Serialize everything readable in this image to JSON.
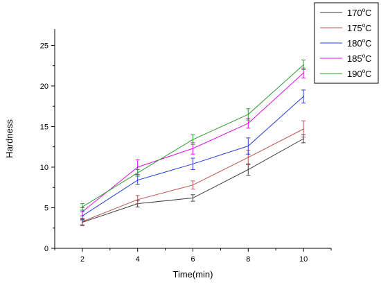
{
  "chart_data": {
    "type": "line",
    "title": "",
    "xlabel": "Time(min)",
    "ylabel": "Hardness",
    "x": [
      2,
      4,
      6,
      8,
      10
    ],
    "xticks": [
      "2",
      "4",
      "6",
      "8",
      "10"
    ],
    "xlim": [
      1,
      11
    ],
    "yticks": [
      "0",
      "5",
      "10",
      "15",
      "20",
      "25"
    ],
    "ylim": [
      0,
      27
    ],
    "legend_position": "top-right",
    "grid": false,
    "series": [
      {
        "name": "170°C",
        "name_base": "170",
        "name_sup": "o",
        "name_suffix": "C",
        "color": "#3a3a3a",
        "values": [
          3.2,
          5.5,
          6.2,
          9.7,
          13.5
        ],
        "errors": [
          0.4,
          0.4,
          0.4,
          0.7,
          0.5
        ]
      },
      {
        "name": "175°C",
        "name_base": "175",
        "name_sup": "o",
        "name_suffix": "C",
        "color": "#c0504d",
        "values": [
          3.3,
          6.0,
          7.8,
          11.2,
          14.7
        ],
        "errors": [
          0.4,
          0.5,
          0.5,
          0.9,
          1.0
        ]
      },
      {
        "name": "180°C",
        "name_base": "180",
        "name_sup": "o",
        "name_suffix": "C",
        "color": "#1f3fd6",
        "values": [
          4.0,
          8.4,
          10.4,
          12.6,
          18.7
        ],
        "errors": [
          0.5,
          0.5,
          0.7,
          1.0,
          0.8
        ]
      },
      {
        "name": "185°C",
        "name_base": "185",
        "name_sup": "o",
        "name_suffix": "C",
        "color": "#e00ee0",
        "values": [
          4.5,
          10.0,
          12.3,
          15.4,
          21.6
        ],
        "errors": [
          0.5,
          0.9,
          0.7,
          0.6,
          0.6
        ]
      },
      {
        "name": "190°C",
        "name_base": "190",
        "name_sup": "o",
        "name_suffix": "C",
        "color": "#2e9a2e",
        "values": [
          5.1,
          9.3,
          13.4,
          16.5,
          22.6
        ],
        "errors": [
          0.4,
          0.4,
          0.6,
          0.7,
          0.6
        ]
      }
    ]
  }
}
